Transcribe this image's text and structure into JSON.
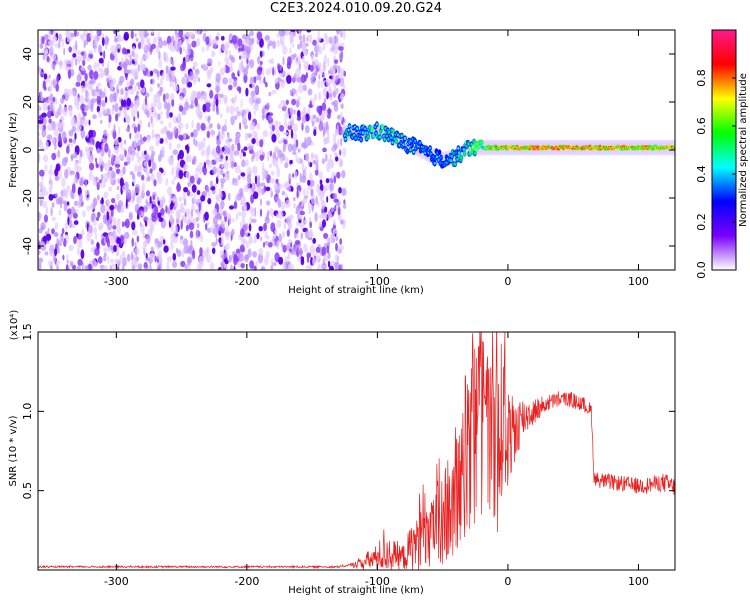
{
  "title": "C2E3.2024.010.09.20.G24",
  "chart_data": [
    {
      "type": "heatmap",
      "xlabel": "Height of straight line (km)",
      "ylabel": "Frequency (Hz)",
      "xlim": [
        -360,
        128
      ],
      "ylim": [
        -50,
        50
      ],
      "xticks": [
        -300,
        -200,
        -100,
        0,
        100
      ],
      "yticks": [
        -40,
        -20,
        0,
        20,
        40
      ],
      "colorbar": {
        "label": "Normalized spectral amplitude",
        "range": [
          0.0,
          1.0
        ],
        "ticks": [
          0.0,
          0.2,
          0.4,
          0.6,
          0.8
        ],
        "colormap": [
          "#ffffff",
          "#7a00ff",
          "#0000ff",
          "#00ffff",
          "#00ff00",
          "#ffff00",
          "#ff0000",
          "#ff1a8c"
        ]
      },
      "regions": {
        "noise_band": {
          "x": [
            -360,
            -125
          ],
          "freq": [
            -50,
            50
          ],
          "amplitude": 0.15
        },
        "signal_track": {
          "x": [
            -125,
            -110,
            -100,
            -90,
            -80,
            -70,
            -60,
            -50,
            -40,
            -30,
            -20,
            -10,
            0,
            20,
            40,
            60,
            80,
            100,
            128
          ],
          "freq": [
            7,
            7,
            8,
            6,
            3,
            1,
            -2,
            -4,
            -3,
            1,
            1,
            1,
            1,
            1,
            1,
            1,
            1,
            1,
            1
          ],
          "amplitude": [
            0.45,
            0.5,
            0.5,
            0.5,
            0.45,
            0.45,
            0.4,
            0.4,
            0.45,
            0.55,
            0.7,
            0.8,
            0.85,
            0.9,
            0.9,
            0.9,
            0.85,
            0.85,
            0.85
          ]
        }
      },
      "grid": false
    },
    {
      "type": "line",
      "xlabel": "Height of straight line (km)",
      "ylabel": "SNR (10 * v/v)",
      "multiplier_label": "(x10⁴)",
      "xlim": [
        -360,
        128
      ],
      "ylim": [
        0,
        1.5
      ],
      "xticks": [
        -300,
        -200,
        -100,
        0,
        100
      ],
      "yticks": [
        0.5,
        1.0,
        1.5
      ],
      "ytick_labels": [
        "0.5",
        "1.0",
        "1.5"
      ],
      "series": [
        {
          "color": "#e82020",
          "x": [
            -360,
            -300,
            -200,
            -130,
            -120,
            -110,
            -100,
            -95,
            -90,
            -80,
            -70,
            -60,
            -50,
            -40,
            -30,
            -25,
            -20,
            -15,
            -10,
            -5,
            0,
            10,
            20,
            30,
            40,
            50,
            60,
            64,
            66,
            70,
            80,
            90,
            100,
            110,
            120,
            128
          ],
          "y": [
            0.02,
            0.02,
            0.02,
            0.02,
            0.03,
            0.05,
            0.08,
            0.12,
            0.1,
            0.08,
            0.18,
            0.2,
            0.3,
            0.45,
            0.65,
            0.85,
            0.9,
            0.8,
            0.75,
            0.9,
            0.8,
            0.95,
            1.0,
            1.05,
            1.08,
            1.07,
            1.03,
            1.0,
            0.58,
            0.57,
            0.55,
            0.54,
            0.53,
            0.54,
            0.55,
            0.52
          ],
          "noise_amplitude": [
            0,
            0,
            0,
            0,
            0.01,
            0.05,
            0.08,
            0.15,
            0.1,
            0.08,
            0.2,
            0.25,
            0.3,
            0.4,
            0.5,
            0.6,
            0.55,
            0.5,
            0.6,
            0.55,
            0.3,
            0.15,
            0.08,
            0.05,
            0.05,
            0.05,
            0.05,
            0.05,
            0.05,
            0.05,
            0.05,
            0.05,
            0.05,
            0.05,
            0.06,
            0.06
          ]
        }
      ],
      "grid": false
    }
  ]
}
